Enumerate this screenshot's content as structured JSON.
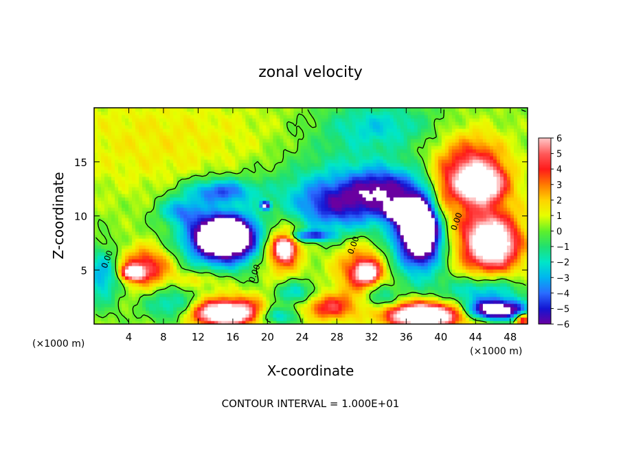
{
  "chart_data": {
    "type": "heatmap",
    "title": "zonal velocity",
    "xlabel": "X-coordinate",
    "ylabel": "Z-coordinate",
    "x_unit_left": "(×1000 m)",
    "x_unit_right": "(×1000 m)",
    "footer": "CONTOUR INTERVAL = 1.000E+01",
    "xlim": [
      0,
      50
    ],
    "ylim": [
      0,
      20
    ],
    "x_ticks": [
      4,
      8,
      12,
      16,
      20,
      24,
      28,
      32,
      36,
      40,
      44,
      48
    ],
    "y_ticks": [
      5,
      10,
      15
    ],
    "colorbar": {
      "range": [
        -6,
        6
      ],
      "levels": [
        6,
        5,
        4,
        3,
        2,
        1,
        0,
        -1,
        -2,
        -3,
        -4,
        -5,
        -6
      ],
      "labels": [
        "6",
        "5",
        "4",
        "3",
        "2",
        "1",
        "0",
        "−1",
        "−2",
        "−3",
        "−4",
        "−5",
        "−6"
      ],
      "colors": [
        "#ffc8c8",
        "#ff5a5a",
        "#ff1a1a",
        "#ff7a00",
        "#ffd200",
        "#e6ff00",
        "#5ef02a",
        "#20e070",
        "#00e6c8",
        "#00b4f0",
        "#2a6cff",
        "#1414d2",
        "#6a00a0"
      ]
    },
    "contour_labels": [
      {
        "x": 1.8,
        "z": 5.9,
        "text": "0.00"
      },
      {
        "x": 18.8,
        "z": 4.6,
        "text": "0.00"
      },
      {
        "x": 30.2,
        "z": 7.2,
        "text": "0.00"
      },
      {
        "x": 42.1,
        "z": 9.4,
        "text": "0.00"
      }
    ],
    "regions": [
      {
        "x": 5,
        "z": 17,
        "rx": 10,
        "rz": 5,
        "v": 1.0
      },
      {
        "x": 18,
        "z": 17,
        "rx": 10,
        "rz": 4,
        "v": 0.6
      },
      {
        "x": 30,
        "z": 16,
        "rx": 8,
        "rz": 4,
        "v": -1.2
      },
      {
        "x": 33,
        "z": 18.5,
        "rx": 6,
        "rz": 2,
        "v": -2.0
      },
      {
        "x": 24,
        "z": 13,
        "rx": 8,
        "rz": 3,
        "v": -0.8
      },
      {
        "x": 47,
        "z": 3,
        "rx": 7,
        "rz": 6,
        "v": 0.8
      },
      {
        "x": 14.5,
        "z": 12.3,
        "rx": 4,
        "rz": 1.2,
        "v": -4.5
      },
      {
        "x": 10,
        "z": 10.5,
        "rx": 2.5,
        "rz": 1.2,
        "v": -3.5
      },
      {
        "x": 28,
        "z": 11,
        "rx": 5.5,
        "rz": 2.5,
        "v": -5.0
      },
      {
        "x": 33.5,
        "z": 12.5,
        "rx": 4,
        "rz": 2,
        "v": -4.5
      },
      {
        "x": 37.5,
        "z": 8,
        "rx": 4,
        "rz": 4,
        "v": -4.5
      },
      {
        "x": 15,
        "z": 7.5,
        "rx": 5,
        "rz": 2.5,
        "v": -5.0
      },
      {
        "x": 15,
        "z": 8.3,
        "rx": 3.3,
        "rz": 1.8,
        "v": -9.0
      },
      {
        "x": 37.8,
        "z": 8.9,
        "rx": 2.3,
        "rz": 2.8,
        "v": -9.0
      },
      {
        "x": 35,
        "z": 10.5,
        "rx": 1.3,
        "rz": 0.7,
        "v": -9.0
      },
      {
        "x": 19.8,
        "z": 11,
        "rx": 0.6,
        "rz": 0.4,
        "v": -6.0
      },
      {
        "x": 25,
        "z": 8.2,
        "rx": 2.5,
        "rz": 0.5,
        "v": -4.5
      },
      {
        "x": 43.5,
        "z": 14.5,
        "rx": 4,
        "rz": 3,
        "v": 4.5
      },
      {
        "x": 44.5,
        "z": 13,
        "rx": 2.5,
        "rz": 1.5,
        "v": 7.0
      },
      {
        "x": 46,
        "z": 7.5,
        "rx": 2.5,
        "rz": 2,
        "v": 7.0
      },
      {
        "x": 44,
        "z": 8.5,
        "rx": 5,
        "rz": 4,
        "v": 3.5
      },
      {
        "x": 40,
        "z": 11,
        "rx": 1.5,
        "rz": 3,
        "v": 2.5
      },
      {
        "x": 6,
        "z": 5.3,
        "rx": 3,
        "rz": 1.8,
        "v": 4.5
      },
      {
        "x": 4.5,
        "z": 4.8,
        "rx": 1.2,
        "rz": 0.6,
        "v": 7.0
      },
      {
        "x": 21.5,
        "z": 7,
        "rx": 2.5,
        "rz": 2.5,
        "v": 4.0
      },
      {
        "x": 22,
        "z": 7,
        "rx": 1,
        "rz": 1,
        "v": 7.0
      },
      {
        "x": 31,
        "z": 5,
        "rx": 3,
        "rz": 2.5,
        "v": 4.0
      },
      {
        "x": 31.5,
        "z": 4.8,
        "rx": 1.2,
        "rz": 0.8,
        "v": 7.0
      },
      {
        "x": 16,
        "z": 1.2,
        "rx": 5.5,
        "rz": 1.6,
        "v": 4.0
      },
      {
        "x": 15,
        "z": 1.0,
        "rx": 3,
        "rz": 0.9,
        "v": 7.0
      },
      {
        "x": 27,
        "z": 1.6,
        "rx": 3,
        "rz": 1.2,
        "v": 4.0
      },
      {
        "x": 38,
        "z": 1.0,
        "rx": 5,
        "rz": 1.4,
        "v": 4.5
      },
      {
        "x": 38,
        "z": 0.8,
        "rx": 3.5,
        "rz": 0.9,
        "v": 7.0
      },
      {
        "x": 23,
        "z": 2.8,
        "rx": 2.5,
        "rz": 1.2,
        "v": -3.0
      },
      {
        "x": 33,
        "z": 2.5,
        "rx": 2,
        "rz": 1.2,
        "v": -3.0
      },
      {
        "x": 21,
        "z": 0.8,
        "rx": 2.5,
        "rz": 0.9,
        "v": -4.0
      },
      {
        "x": 9,
        "z": 1.8,
        "rx": 3,
        "rz": 1.5,
        "v": -3.0
      },
      {
        "x": 1,
        "z": 4.5,
        "rx": 2,
        "rz": 2.5,
        "v": -3.5
      },
      {
        "x": 46.5,
        "z": 1.3,
        "rx": 3.5,
        "rz": 0.9,
        "v": -9.0
      },
      {
        "x": 45,
        "z": 3,
        "rx": 5,
        "rz": 1.5,
        "v": -4.0
      },
      {
        "x": 12.5,
        "z": 4.2,
        "rx": 3,
        "rz": 0.8,
        "v": 1.5
      },
      {
        "x": 49.5,
        "z": 0.5,
        "rx": 0.8,
        "rz": 0.6,
        "v": 5.0
      }
    ]
  }
}
